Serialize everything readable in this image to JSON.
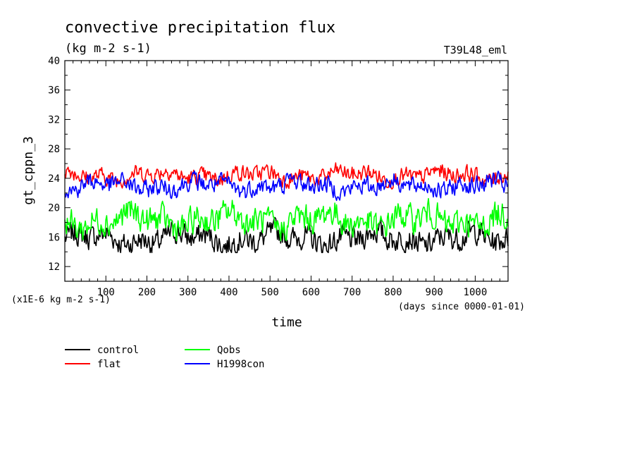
{
  "chart_data": {
    "type": "line",
    "title": "convective precipitation flux",
    "units": "(kg m-2 s-1)",
    "experiment": "T39L48_eml",
    "ylabel": "gt_cppn_3",
    "xlabel": "time",
    "x_units_note": "(days since 0000-01-01)",
    "y_scale_note": "(x1E-6 kg m-2 s-1)",
    "xlim": [
      0,
      1080
    ],
    "ylim": [
      10,
      40
    ],
    "x_ticks": [
      100,
      200,
      300,
      400,
      500,
      600,
      700,
      800,
      900,
      1000
    ],
    "y_ticks": [
      12,
      16,
      20,
      24,
      28,
      32,
      36,
      40
    ],
    "legend_position": "below-left",
    "series": [
      {
        "name": "control",
        "color": "#000000",
        "mean": 15.8,
        "amp": 1.3,
        "peak": 18.7,
        "trough": 13.9
      },
      {
        "name": "flat",
        "color": "#ff0000",
        "mean": 24.4,
        "amp": 0.9,
        "peak": 27.0,
        "trough": 22.0
      },
      {
        "name": "Qobs",
        "color": "#00ff00",
        "mean": 18.3,
        "amp": 1.5,
        "peak": 23.5,
        "trough": 15.5
      },
      {
        "name": "H1998con",
        "color": "#0000ff",
        "mean": 23.0,
        "amp": 1.0,
        "peak": 26.0,
        "trough": 20.3
      }
    ]
  }
}
